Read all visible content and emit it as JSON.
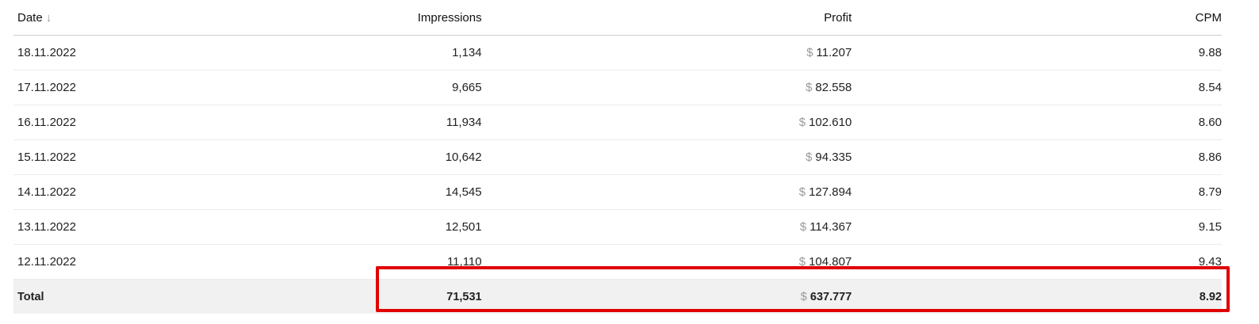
{
  "columns": {
    "date": "Date",
    "impressions": "Impressions",
    "profit": "Profit",
    "cpm": "CPM",
    "sort_icon": "arrow-down-icon"
  },
  "currency_symbol": "$",
  "rows": [
    {
      "date": "18.11.2022",
      "impressions": "1,134",
      "profit": "11.207",
      "cpm": "9.88"
    },
    {
      "date": "17.11.2022",
      "impressions": "9,665",
      "profit": "82.558",
      "cpm": "8.54"
    },
    {
      "date": "16.11.2022",
      "impressions": "11,934",
      "profit": "102.610",
      "cpm": "8.60"
    },
    {
      "date": "15.11.2022",
      "impressions": "10,642",
      "profit": "94.335",
      "cpm": "8.86"
    },
    {
      "date": "14.11.2022",
      "impressions": "14,545",
      "profit": "127.894",
      "cpm": "8.79"
    },
    {
      "date": "13.11.2022",
      "impressions": "12,501",
      "profit": "114.367",
      "cpm": "9.15"
    },
    {
      "date": "12.11.2022",
      "impressions": "11,110",
      "profit": "104.807",
      "cpm": "9.43"
    }
  ],
  "total": {
    "label": "Total",
    "impressions": "71,531",
    "profit": "637.777",
    "cpm": "8.92"
  },
  "highlight_color": "#e00000"
}
